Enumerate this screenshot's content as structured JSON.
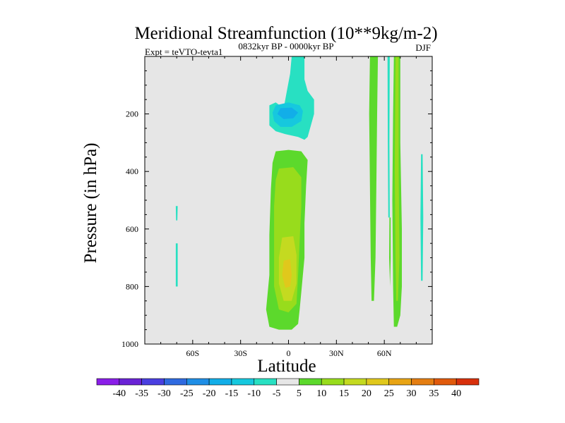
{
  "chart_data": {
    "type": "contour",
    "title": "Meridional Streamfunction (10**9kg/m-2)",
    "left_string": "Expt = teVTO-tevta1",
    "center_string": "0832kyr BP - 0000kyr BP",
    "right_string": "DJF",
    "xlabel": "Latitude",
    "ylabel": "Pressure (in hPa)",
    "xlim": [
      -90,
      90
    ],
    "ylim": [
      1000,
      0
    ],
    "x_ticks": [
      {
        "value": -60,
        "label": "60S"
      },
      {
        "value": -30,
        "label": "30S"
      },
      {
        "value": 0,
        "label": "0"
      },
      {
        "value": 30,
        "label": "30N"
      },
      {
        "value": 60,
        "label": "60N"
      }
    ],
    "y_ticks": [
      {
        "value": 200,
        "label": "200"
      },
      {
        "value": 400,
        "label": "400"
      },
      {
        "value": 600,
        "label": "600"
      },
      {
        "value": 800,
        "label": "800"
      },
      {
        "value": 1000,
        "label": "1000"
      }
    ],
    "contour_levels": [
      -40,
      -35,
      -30,
      -25,
      -20,
      -15,
      -10,
      -5,
      5,
      10,
      15,
      20,
      25,
      30,
      35,
      40
    ],
    "colors": [
      "#8a1ee8",
      "#6a23d6",
      "#4a3fe0",
      "#2f6ae0",
      "#1f8ee6",
      "#12aee8",
      "#16c8de",
      "#28e0c2",
      "#e6e6e6",
      "#5cd92c",
      "#98dc1c",
      "#c4da20",
      "#e0c81c",
      "#e8a414",
      "#e47e12",
      "#e05a0c",
      "#d8300c"
    ],
    "features": [
      {
        "name": "upper-negative-cell",
        "level": -10,
        "points": [
          [
            -3,
            180
          ],
          [
            -1,
            120
          ],
          [
            1,
            60
          ],
          [
            2,
            0
          ],
          [
            10,
            0
          ],
          [
            10,
            80
          ],
          [
            12,
            120
          ],
          [
            16,
            150
          ],
          [
            16,
            200
          ],
          [
            14,
            240
          ],
          [
            12,
            280
          ],
          [
            10,
            290
          ],
          [
            6,
            280
          ],
          [
            -2,
            270
          ],
          [
            -8,
            260
          ],
          [
            -12,
            240
          ],
          [
            -12,
            200
          ],
          [
            -12,
            170
          ],
          [
            -8,
            160
          ]
        ]
      },
      {
        "name": "upper-negative-core",
        "level": -15,
        "points": [
          [
            -8,
            170
          ],
          [
            0,
            160
          ],
          [
            7,
            170
          ],
          [
            9,
            190
          ],
          [
            8,
            225
          ],
          [
            2,
            245
          ],
          [
            -5,
            245
          ],
          [
            -9,
            225
          ],
          [
            -10,
            195
          ]
        ]
      },
      {
        "name": "upper-negative-center",
        "level": -20,
        "points": [
          [
            -5,
            180
          ],
          [
            2,
            178
          ],
          [
            6,
            195
          ],
          [
            3,
            215
          ],
          [
            -3,
            218
          ],
          [
            -7,
            200
          ]
        ]
      },
      {
        "name": "lower-positive-cell",
        "level": 5,
        "points": [
          [
            -8,
            330
          ],
          [
            0,
            325
          ],
          [
            8,
            330
          ],
          [
            12,
            360
          ],
          [
            11,
            450
          ],
          [
            10,
            580
          ],
          [
            10,
            700
          ],
          [
            8,
            820
          ],
          [
            7,
            880
          ],
          [
            6,
            930
          ],
          [
            2,
            950
          ],
          [
            -6,
            950
          ],
          [
            -12,
            940
          ],
          [
            -14,
            880
          ],
          [
            -12,
            760
          ],
          [
            -12,
            620
          ],
          [
            -11,
            460
          ],
          [
            -10,
            370
          ]
        ]
      },
      {
        "name": "lower-positive-mid",
        "level": 10,
        "points": [
          [
            -6,
            390
          ],
          [
            3,
            385
          ],
          [
            8,
            420
          ],
          [
            8,
            520
          ],
          [
            7,
            640
          ],
          [
            6,
            760
          ],
          [
            5,
            860
          ],
          [
            0,
            890
          ],
          [
            -6,
            880
          ],
          [
            -9,
            800
          ],
          [
            -9,
            650
          ],
          [
            -9,
            520
          ],
          [
            -8,
            430
          ]
        ]
      },
      {
        "name": "lower-positive-core",
        "level": 15,
        "points": [
          [
            -4,
            630
          ],
          [
            3,
            625
          ],
          [
            5,
            690
          ],
          [
            5,
            790
          ],
          [
            2,
            850
          ],
          [
            -3,
            850
          ],
          [
            -6,
            790
          ],
          [
            -6,
            700
          ]
        ]
      },
      {
        "name": "lower-positive-center",
        "level": 20,
        "points": [
          [
            -3,
            710
          ],
          [
            1,
            705
          ],
          [
            2,
            760
          ],
          [
            1,
            800
          ],
          [
            -2,
            805
          ],
          [
            -4,
            760
          ]
        ]
      },
      {
        "name": "north-band-a",
        "level": 5,
        "points": [
          [
            51,
            0
          ],
          [
            56,
            0
          ],
          [
            55.5,
            200
          ],
          [
            55,
            450
          ],
          [
            54.5,
            700
          ],
          [
            53.5,
            850
          ],
          [
            52,
            850
          ],
          [
            51.5,
            700
          ],
          [
            51,
            450
          ],
          [
            50.5,
            200
          ]
        ]
      },
      {
        "name": "north-band-b",
        "level": 5,
        "points": [
          [
            66,
            0
          ],
          [
            70,
            0
          ],
          [
            70,
            300
          ],
          [
            71,
            600
          ],
          [
            71,
            800
          ],
          [
            70,
            900
          ],
          [
            68,
            940
          ],
          [
            66,
            940
          ],
          [
            65.5,
            800
          ],
          [
            65,
            500
          ],
          [
            65.5,
            200
          ]
        ]
      },
      {
        "name": "north-band-b-core",
        "level": 10,
        "points": [
          [
            67,
            0
          ],
          [
            69,
            0
          ],
          [
            69,
            400
          ],
          [
            69.5,
            700
          ],
          [
            68.5,
            850
          ],
          [
            67.5,
            850
          ],
          [
            67,
            700
          ],
          [
            66.5,
            400
          ]
        ]
      },
      {
        "name": "north-sliver-negative",
        "level": -10,
        "points": [
          [
            62,
            0
          ],
          [
            63.4,
            0
          ],
          [
            63.2,
            300
          ],
          [
            63.4,
            560
          ],
          [
            62.5,
            560
          ],
          [
            62.2,
            300
          ]
        ]
      },
      {
        "name": "north-sliver-positive",
        "level": 5,
        "points": [
          [
            63.2,
            560
          ],
          [
            64,
            560
          ],
          [
            64,
            700
          ],
          [
            63.6,
            800
          ],
          [
            63,
            700
          ]
        ]
      },
      {
        "name": "north-edge-sliver",
        "level": -10,
        "points": [
          [
            83,
            340
          ],
          [
            84,
            340
          ],
          [
            84.4,
            560
          ],
          [
            84,
            780
          ],
          [
            83,
            780
          ],
          [
            82.6,
            560
          ]
        ]
      },
      {
        "name": "south-sliver-upper",
        "level": -10,
        "points": [
          [
            -70.6,
            520
          ],
          [
            -69.4,
            520
          ],
          [
            -69.6,
            570
          ],
          [
            -70.4,
            570
          ]
        ]
      },
      {
        "name": "south-sliver-lower",
        "level": -10,
        "points": [
          [
            -70.6,
            650
          ],
          [
            -69.4,
            650
          ],
          [
            -69.4,
            800
          ],
          [
            -70.6,
            800
          ]
        ]
      }
    ]
  }
}
